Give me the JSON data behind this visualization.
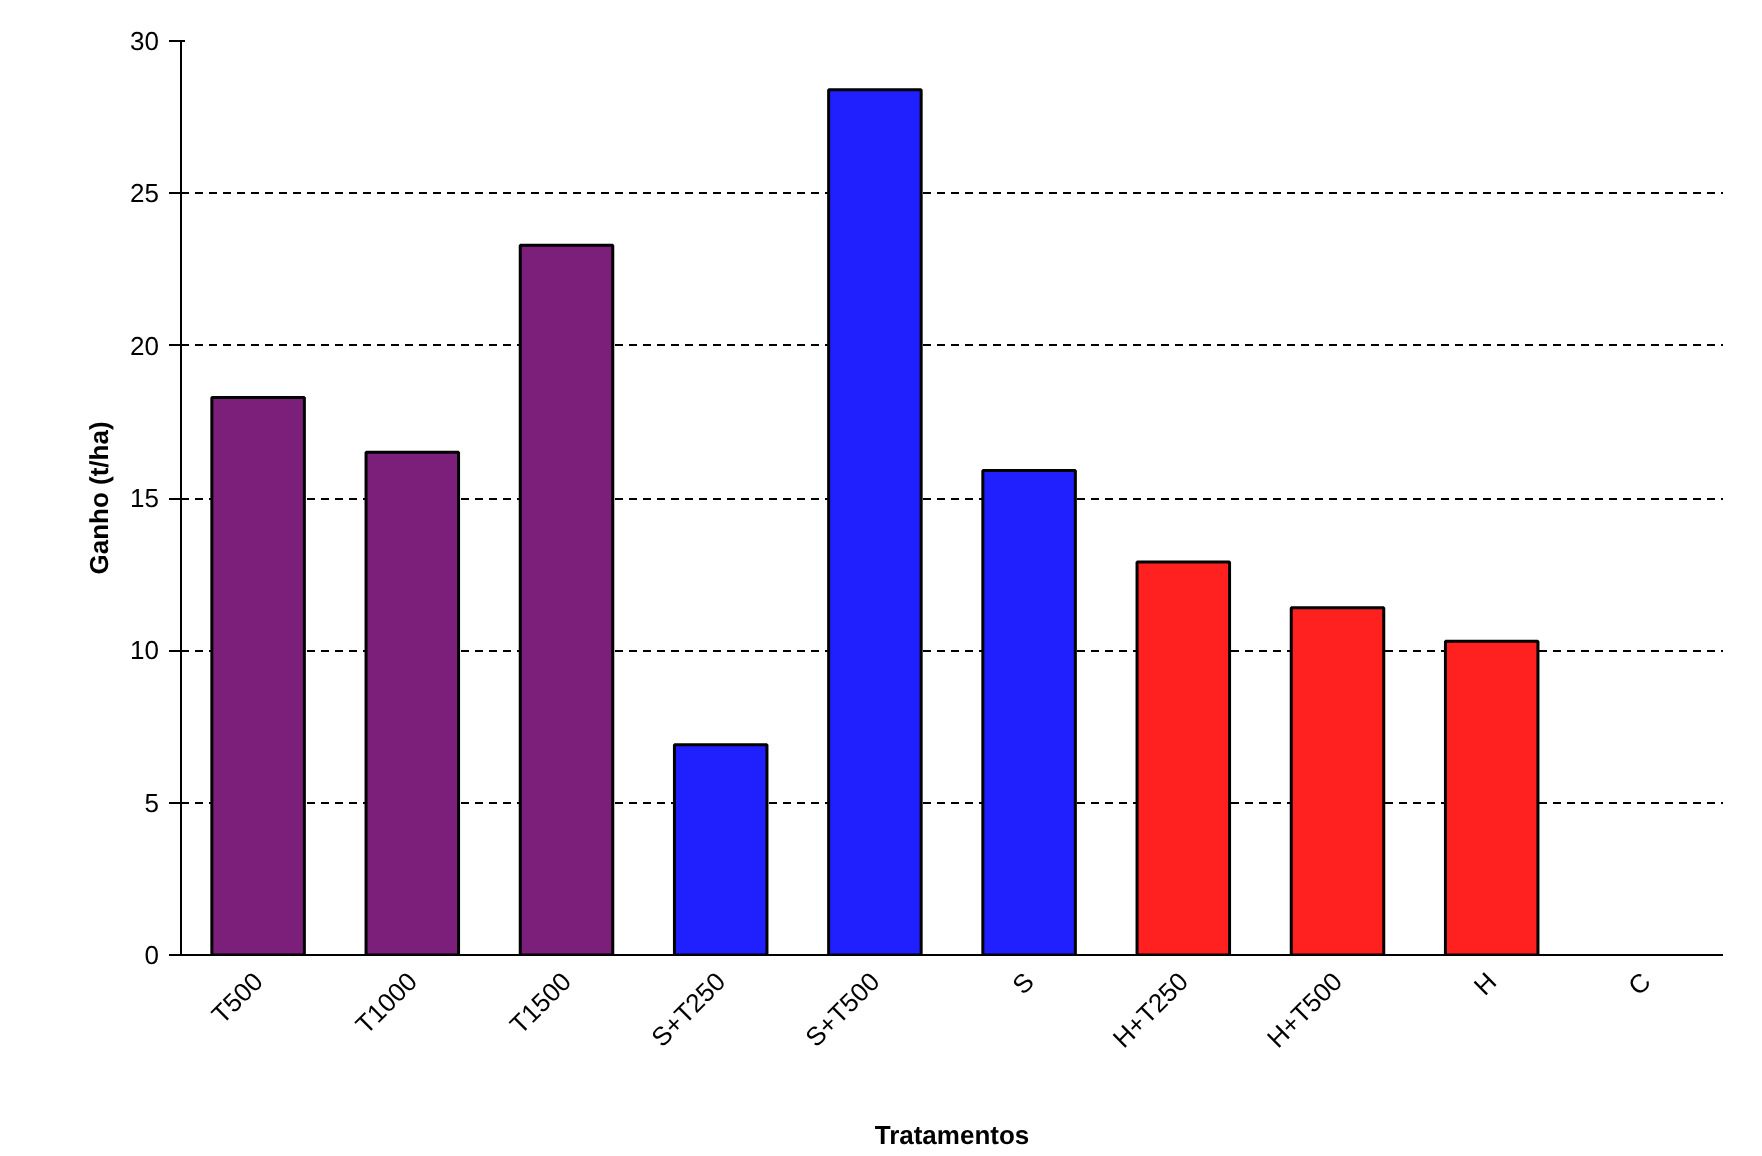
{
  "chart_data": {
    "type": "bar",
    "xlabel": "Tratamentos",
    "ylabel": "Ganho (t/ha)",
    "categories": [
      "T500",
      "T1000",
      "T1500",
      "S+T250",
      "S+T500",
      "S",
      "H+T250",
      "H+T500",
      "H",
      "C"
    ],
    "values": [
      18.3,
      16.5,
      23.3,
      6.9,
      28.4,
      15.9,
      12.9,
      11.4,
      10.3,
      0
    ],
    "colors": [
      "#7b1f7b",
      "#7b1f7b",
      "#7b1f7b",
      "#2020ff",
      "#2020ff",
      "#2020ff",
      "#ff2020",
      "#ff2020",
      "#ff2020",
      null
    ],
    "ylim": [
      0,
      30
    ],
    "yticks": [
      0,
      5,
      10,
      15,
      20,
      25,
      30
    ],
    "grid": "y"
  }
}
